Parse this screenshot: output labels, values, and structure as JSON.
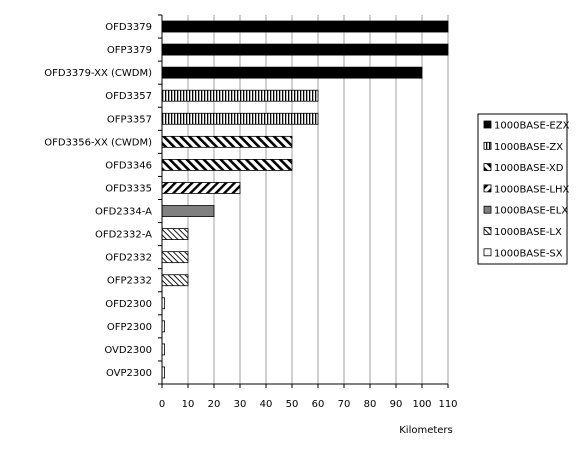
{
  "chart_data": {
    "type": "bar",
    "orientation": "horizontal",
    "title": "",
    "xlabel": "Kilometers",
    "ylabel": "",
    "xlim": [
      0,
      110
    ],
    "xticks": [
      0,
      10,
      20,
      30,
      40,
      50,
      60,
      70,
      80,
      90,
      100,
      110
    ],
    "grid": "vertical",
    "legend_position": "right",
    "categories": [
      "OFD3379",
      "OFP3379",
      "OFD3379-XX (CWDM)",
      "OFD3357",
      "OFP3357",
      "OFD3356-XX (CWDM)",
      "OFD3346",
      "OFD3335",
      "OFD2334-A",
      "OFD2332-A",
      "OFD2332",
      "OFP2332",
      "OFD2300",
      "OFP2300",
      "OVD2300",
      "OVP2300"
    ],
    "values": [
      110,
      110,
      100,
      60,
      60,
      50,
      50,
      30,
      20,
      10,
      10,
      10,
      1,
      1,
      1,
      1
    ],
    "bar_series": [
      "1000BASE-EZX",
      "1000BASE-EZX",
      "1000BASE-EZX",
      "1000BASE-ZX",
      "1000BASE-ZX",
      "1000BASE-XD",
      "1000BASE-XD",
      "1000BASE-LHX",
      "1000BASE-ELX",
      "1000BASE-LX",
      "1000BASE-LX",
      "1000BASE-LX",
      "1000BASE-SX",
      "1000BASE-SX",
      "1000BASE-SX",
      "1000BASE-SX"
    ],
    "legend": [
      {
        "name": "1000BASE-EZX",
        "pattern": "solid-black"
      },
      {
        "name": "1000BASE-ZX",
        "pattern": "vertical-lines"
      },
      {
        "name": "1000BASE-XD",
        "pattern": "thick-backslash"
      },
      {
        "name": "1000BASE-LHX",
        "pattern": "thick-slash"
      },
      {
        "name": "1000BASE-ELX",
        "pattern": "solid-gray"
      },
      {
        "name": "1000BASE-LX",
        "pattern": "thin-backslash"
      },
      {
        "name": "1000BASE-SX",
        "pattern": "white"
      }
    ],
    "colors": {
      "ezx": "#000000",
      "elx": "#808080",
      "grid": "#a0a0a0",
      "axis": "#000000"
    }
  }
}
